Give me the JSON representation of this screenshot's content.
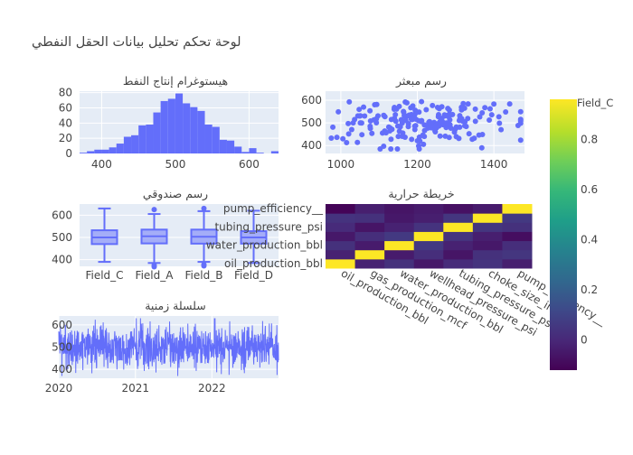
{
  "dashboard_title": "لوحة تحكم تحليل بيانات الحقل النفطي",
  "colors": {
    "series": "#636efa",
    "grid": "#ffffff",
    "plot_bg": "#e5ecf6",
    "text": "#444444"
  },
  "colorbar": {
    "title": "Field_C",
    "ticks": [
      "0",
      "0.2",
      "0.4",
      "0.6",
      "0.8"
    ],
    "tick_values": [
      0,
      0.2,
      0.4,
      0.6,
      0.8
    ],
    "range": [
      -0.12,
      0.96
    ],
    "colorscale": "viridis"
  },
  "chart_data": [
    {
      "type": "bar",
      "subtype": "histogram",
      "title": "هيستوغرام إنتاج النفط",
      "xlim": [
        370,
        640
      ],
      "ylim": [
        0,
        82
      ],
      "xticks": [
        400,
        500,
        600
      ],
      "yticks": [
        0,
        20,
        40,
        60,
        80
      ],
      "bin_width": 10,
      "bin_starts": [
        370,
        380,
        390,
        400,
        410,
        420,
        430,
        440,
        450,
        460,
        470,
        480,
        490,
        500,
        510,
        520,
        530,
        540,
        550,
        560,
        570,
        580,
        590,
        600,
        610,
        620,
        630
      ],
      "values": [
        1,
        3,
        5,
        5,
        8,
        13,
        22,
        24,
        37,
        38,
        54,
        69,
        72,
        79,
        66,
        61,
        56,
        38,
        35,
        18,
        17,
        9,
        2,
        7,
        1,
        0,
        3
      ]
    },
    {
      "type": "scatter",
      "title": "رسم مبعثر",
      "xlim": [
        960,
        1480
      ],
      "ylim": [
        365,
        640
      ],
      "xticks": [
        1000,
        1200,
        1400
      ],
      "yticks": [
        400,
        500,
        600
      ],
      "points_count": 200,
      "x_mean": 1210,
      "x_sd": 110,
      "y_mean": 500,
      "y_sd": 50
    },
    {
      "type": "box",
      "title": "رسم صندوقي",
      "categories": [
        "Field_C",
        "Field_A",
        "Field_B",
        "Field_D"
      ],
      "yticks": [
        400,
        500,
        600
      ],
      "ylim": [
        370,
        650
      ],
      "boxes": [
        {
          "name": "Field_C",
          "lower_whisker": 390,
          "q1": 470,
          "median": 500,
          "q3": 532,
          "upper_whisker": 630,
          "outliers": []
        },
        {
          "name": "Field_A",
          "lower_whisker": 385,
          "q1": 473,
          "median": 505,
          "q3": 535,
          "upper_whisker": 605,
          "outliers": [
            625,
            375,
            368
          ]
        },
        {
          "name": "Field_B",
          "lower_whisker": 390,
          "q1": 472,
          "median": 503,
          "q3": 535,
          "upper_whisker": 618,
          "outliers": [
            630,
            378,
            372
          ]
        },
        {
          "name": "Field_D",
          "lower_whisker": 385,
          "q1": 472,
          "median": 500,
          "q3": 528,
          "upper_whisker": 620,
          "outliers": []
        }
      ]
    },
    {
      "type": "heatmap",
      "title": "خريطة حرارية",
      "x_labels": [
        "oil_production_bbl",
        "gas_production_mcf",
        "water_production_bbl",
        "wellhead_pressure_psi",
        "tubing_pressure_psi",
        "choke_size_in",
        "pump_efficiency"
      ],
      "x_labels_display": [
        "oil_production_bbl",
        "gas_production_mcf",
        "water_production_bbl",
        "wellhead_pressure_psi",
        "tubing_pressure_psi",
        "choke_size_in",
        "pump_efficiency__"
      ],
      "y_labels": [
        "oil_production_bbl",
        "gas_production_mcf",
        "water_production_bbl",
        "wellhead_pressure_psi",
        "tubing_pressure_psi",
        "choke_size_in",
        "pump_efficiency"
      ],
      "y_tick_labels": [
        "oil_production_bbl",
        "",
        "water_production_bbl",
        "",
        "tubing_pressure_psi",
        "",
        "pump_efficiency__"
      ],
      "matrix": [
        [
          1.0,
          -0.02,
          0.03,
          -0.05,
          0.01,
          0.04,
          -0.03
        ],
        [
          -0.02,
          1.0,
          -0.04,
          0.02,
          -0.06,
          0.03,
          0.05
        ],
        [
          0.03,
          -0.04,
          1.0,
          0.06,
          -0.02,
          -0.05,
          0.02
        ],
        [
          -0.05,
          0.02,
          0.06,
          1.0,
          0.04,
          -0.03,
          -0.08
        ],
        [
          0.01,
          -0.06,
          -0.02,
          0.04,
          1.0,
          0.05,
          0.03
        ],
        [
          0.04,
          0.03,
          -0.05,
          -0.03,
          0.05,
          1.0,
          0.06
        ],
        [
          -0.11,
          -0.03,
          -0.06,
          -0.04,
          -0.07,
          -0.04,
          1.0
        ]
      ],
      "zlim": [
        -0.12,
        0.96
      ]
    },
    {
      "type": "line",
      "title": "سلسلة زمنية",
      "xlim": [
        "2020-01-01",
        "2022-11-15"
      ],
      "xticks": [
        "2020",
        "2021",
        "2022"
      ],
      "xtick_dates": [
        "2020-01-01",
        "2021-01-01",
        "2022-01-01"
      ],
      "ylim": [
        360,
        640
      ],
      "yticks": [
        400,
        500,
        600
      ],
      "start": "2020-01-01",
      "points_count": 1050,
      "y_mean": 500,
      "y_sd": 50
    }
  ]
}
